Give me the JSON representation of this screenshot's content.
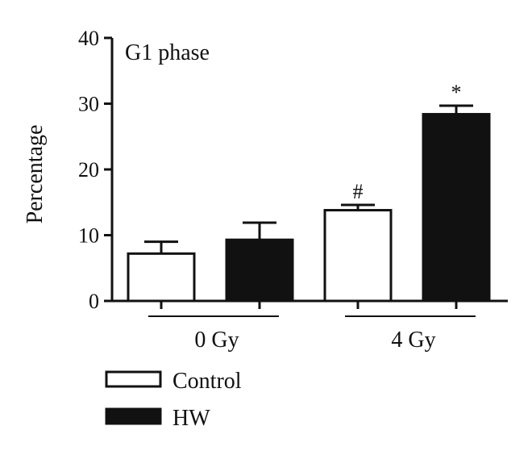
{
  "chart_data": {
    "type": "bar",
    "title": "G1 phase",
    "ylabel": "Percentage",
    "xlabel": "",
    "ylim": [
      0,
      40
    ],
    "yticks": [
      "0",
      "10",
      "20",
      "30",
      "40"
    ],
    "groups": [
      "0 Gy",
      "4 Gy"
    ],
    "series": [
      {
        "name": "Control",
        "values": [
          7.2,
          13.8
        ],
        "errors": [
          1.8,
          0.8
        ],
        "color": "#ffffff"
      },
      {
        "name": "HW",
        "values": [
          9.3,
          28.4
        ],
        "errors": [
          2.6,
          1.3
        ],
        "color": "#111111"
      }
    ],
    "annotations": [
      {
        "group": 1,
        "series": 0,
        "text": "#"
      },
      {
        "group": 1,
        "series": 1,
        "text": "*"
      }
    ],
    "grid": false,
    "legend": "bottom-left"
  }
}
